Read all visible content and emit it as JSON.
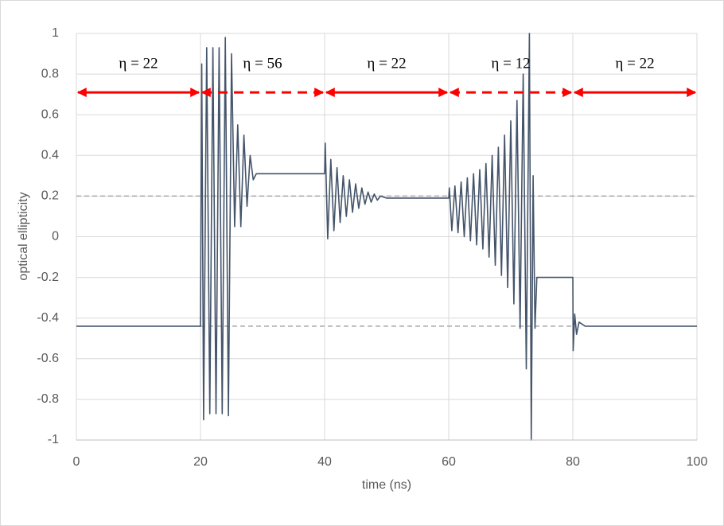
{
  "chart_data": {
    "type": "line",
    "xlabel": "time (ns)",
    "ylabel": "optical ellipticity",
    "xlim": [
      0,
      100
    ],
    "xticks": [
      0,
      20,
      40,
      60,
      80,
      100
    ],
    "ylim": [
      -1,
      1
    ],
    "yticks": [
      1,
      0.8,
      0.6,
      0.4,
      0.2,
      0,
      -0.2,
      -0.4,
      -0.6,
      -0.8,
      -1
    ],
    "grid": true,
    "series": [
      {
        "color": "#44546a",
        "x": [
          0,
          20,
          20.2,
          20.5,
          21,
          21.5,
          22,
          22.5,
          23,
          23.5,
          24,
          24.5,
          25,
          25.5,
          26,
          26.5,
          27,
          27.5,
          28,
          28.5,
          29,
          40,
          40.1,
          40.5,
          41,
          41.5,
          42,
          42.5,
          43,
          43.5,
          44,
          44.5,
          45,
          45.5,
          46,
          46.5,
          47,
          47.5,
          48,
          48.5,
          49,
          50,
          60,
          60.1,
          60.5,
          61,
          61.5,
          62,
          62.5,
          63,
          63.5,
          64,
          64.5,
          65,
          65.5,
          66,
          66.5,
          67,
          67.5,
          68,
          68.5,
          69,
          69.5,
          70,
          70.5,
          71,
          71.5,
          72,
          72.5,
          73,
          73.3,
          73.6,
          73.9,
          74.2,
          80,
          80.05,
          80.3,
          80.6,
          81,
          82,
          100
        ],
        "values": [
          -0.44,
          -0.44,
          0.85,
          -0.9,
          0.93,
          -0.87,
          0.93,
          -0.87,
          0.93,
          -0.87,
          0.98,
          -0.88,
          0.9,
          0.05,
          0.55,
          0.05,
          0.5,
          0.15,
          0.4,
          0.28,
          0.31,
          0.31,
          0.46,
          -0.01,
          0.38,
          0.03,
          0.34,
          0.07,
          0.3,
          0.1,
          0.28,
          0.12,
          0.26,
          0.14,
          0.24,
          0.16,
          0.22,
          0.17,
          0.21,
          0.18,
          0.2,
          0.19,
          0.19,
          0.24,
          0.03,
          0.25,
          0.02,
          0.27,
          0,
          0.29,
          -0.02,
          0.31,
          -0.04,
          0.33,
          -0.06,
          0.36,
          -0.1,
          0.4,
          -0.14,
          0.44,
          -0.19,
          0.5,
          -0.25,
          0.57,
          -0.33,
          0.67,
          -0.45,
          0.8,
          -0.65,
          1,
          -1,
          0.3,
          -0.45,
          -0.2,
          -0.2,
          -0.56,
          -0.38,
          -0.48,
          -0.42,
          -0.44,
          -0.44
        ]
      }
    ],
    "reference_lines": [
      {
        "y": 0.2,
        "x": [
          0,
          100
        ]
      },
      {
        "y": -0.44,
        "x": [
          20,
          80
        ]
      }
    ],
    "arrow_y": 0.71,
    "arrow_color": "#ff0000",
    "annotations": [
      {
        "text": "η = 22",
        "x": [
          0,
          20
        ],
        "style": "solid"
      },
      {
        "text": "η = 56",
        "x": [
          20,
          40
        ],
        "style": "dashed"
      },
      {
        "text": "η = 22",
        "x": [
          40,
          60
        ],
        "style": "solid"
      },
      {
        "text": "η = 12",
        "x": [
          60,
          80
        ],
        "style": "dashed"
      },
      {
        "text": "η = 22",
        "x": [
          80,
          100
        ],
        "style": "solid"
      }
    ]
  }
}
